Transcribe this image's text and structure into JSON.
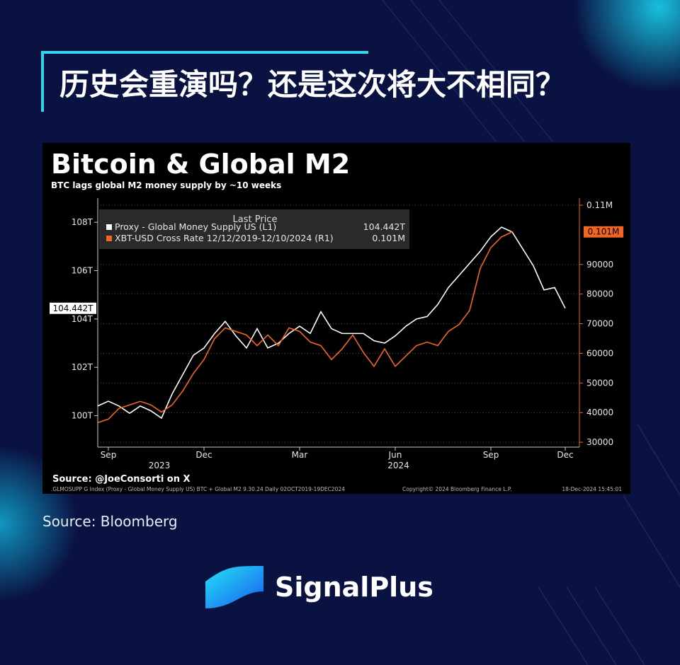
{
  "header": {
    "title": "历史会重演吗？还是这次将大不相同？"
  },
  "chart_data": {
    "type": "line",
    "title": "Bitcoin & Global M2",
    "subtitle": "BTC lags global M2 money supply by ~10 weeks",
    "legend_heading": "Last Price",
    "source_note": "Source: @JoeConsorti on X",
    "footer": [
      ".GLMOSUPP G Index (Proxy - Global Money Supply US) BTC + Global M2 9.30.24  Daily 02OCT2019-19DEC2024",
      "Copyright© 2024 Bloomberg Finance L.P.",
      "18-Dec-2024 15:45:01"
    ],
    "x_group_labels": [
      "2023",
      "2024"
    ],
    "categories": [
      null,
      "Sep",
      null,
      null,
      null,
      null,
      null,
      null,
      null,
      null,
      "Dec",
      null,
      null,
      null,
      null,
      null,
      null,
      null,
      null,
      "Mar",
      null,
      null,
      null,
      null,
      null,
      null,
      null,
      null,
      "Jun",
      null,
      null,
      null,
      null,
      null,
      null,
      null,
      null,
      "Sep",
      null,
      null,
      null,
      null,
      null,
      null,
      "Dec"
    ],
    "series": [
      {
        "name": "Proxy - Global Money Supply US  (L1)",
        "color": "#ffffff",
        "last_value": 104.442,
        "last_label": "104.442T",
        "values": [
          100.4,
          100.6,
          100.4,
          100.1,
          100.4,
          100.2,
          99.9,
          100.9,
          101.7,
          102.5,
          102.8,
          103.4,
          103.9,
          103.3,
          102.8,
          103.6,
          102.8,
          103.0,
          103.4,
          103.7,
          103.4,
          104.3,
          103.6,
          103.4,
          103.4,
          103.4,
          103.1,
          103.0,
          103.3,
          103.7,
          104.0,
          104.1,
          104.6,
          105.3,
          105.8,
          106.3,
          106.8,
          107.4,
          107.8,
          107.6,
          106.9,
          106.2,
          105.2,
          105.3,
          104.442
        ]
      },
      {
        "name": "XBT-USD Cross Rate 12/12/2019-12/10/2024  (R1)",
        "color": "#f26522",
        "axis": "y2",
        "last_value": 101000,
        "last_label": "0.101M",
        "values": [
          36600,
          37800,
          41400,
          42600,
          43800,
          42600,
          40200,
          42600,
          47300,
          53200,
          57900,
          65000,
          68600,
          67400,
          66200,
          62600,
          66200,
          62600,
          68600,
          67400,
          63800,
          62600,
          57900,
          61500,
          66200,
          60300,
          55600,
          61500,
          55600,
          59100,
          62600,
          63800,
          62600,
          67400,
          69700,
          74500,
          88700,
          95700,
          99300,
          101000,
          null,
          null,
          null,
          null,
          null
        ]
      }
    ],
    "ylim": [
      98.7,
      109
    ],
    "yticks": [
      {
        "value": 100,
        "label": "100T"
      },
      {
        "value": 102,
        "label": "102T"
      },
      {
        "value": 104,
        "label": "104T"
      },
      {
        "value": 106,
        "label": "106T"
      },
      {
        "value": 108,
        "label": "108T"
      }
    ],
    "y2lim": [
      28350,
      112400
    ],
    "y2ticks": [
      30000,
      40000,
      50000,
      60000,
      70000,
      80000,
      90000,
      {
        "value": 110000,
        "label": "0.11M"
      }
    ],
    "grid": true
  },
  "source": "Source: Bloomberg",
  "brand": "SignalPlus"
}
